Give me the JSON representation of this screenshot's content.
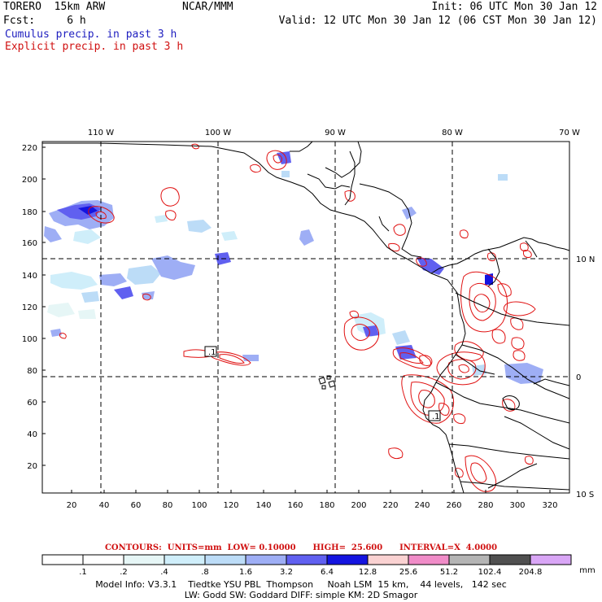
{
  "header": {
    "model": "TORERO  15km ARW",
    "org": "NCAR/MMM",
    "init": "Init: 06 UTC Mon 30 Jan 12",
    "fcst": "Fcst:     6 h",
    "valid": "Valid: 12 UTC Mon 30 Jan 12 (06 CST Mon 30 Jan 12)",
    "field1": "Cumulus precip. in past 3 h",
    "field2": "Explicit precip. in past 3 h"
  },
  "map": {
    "lon_labels": [
      "110 W",
      "100 W",
      "90 W",
      "80 W",
      "70 W"
    ],
    "lat_labels": [
      "10 N",
      "0",
      "10 S"
    ],
    "y_ticks": [
      "220",
      "200",
      "180",
      "160",
      "140",
      "120",
      "100",
      "80",
      "60",
      "40",
      "20"
    ],
    "x_ticks": [
      "20",
      "40",
      "60",
      "80",
      "100",
      "120",
      "140",
      "160",
      "180",
      "200",
      "220",
      "240",
      "260",
      "280",
      "300",
      "320"
    ],
    "contour_labels": [
      ".1",
      ".1"
    ]
  },
  "contours_line": "CONTOURS:  UNITS=mm  LOW= 0.10000      HIGH=  25.600      INTERVAL=X  4.0000",
  "colorbar": {
    "labels": [
      ".1",
      ".2",
      ".4",
      ".8",
      "1.6",
      "3.2",
      "6.4",
      "12.8",
      "25.6",
      "51.2",
      "102.4",
      "204.8"
    ],
    "unit": "mm",
    "colors": [
      "#ffffff",
      "#ffffff",
      "#e6f6f6",
      "#cfeefa",
      "#bcdcf7",
      "#9eaef5",
      "#6060f0",
      "#1414e0",
      "#fad2d2",
      "#f08cc8",
      "#b4b4b4",
      "#505050",
      "#d9a6f6"
    ]
  },
  "model_info": {
    "line1": "Model Info: V3.3.1    Tiedtke YSU PBL  Thompson     Noah LSM  15 km,    44 levels,   142 sec",
    "line2": "LW: Godd SW: Goddard DIFF: simple KM: 2D Smagor"
  }
}
